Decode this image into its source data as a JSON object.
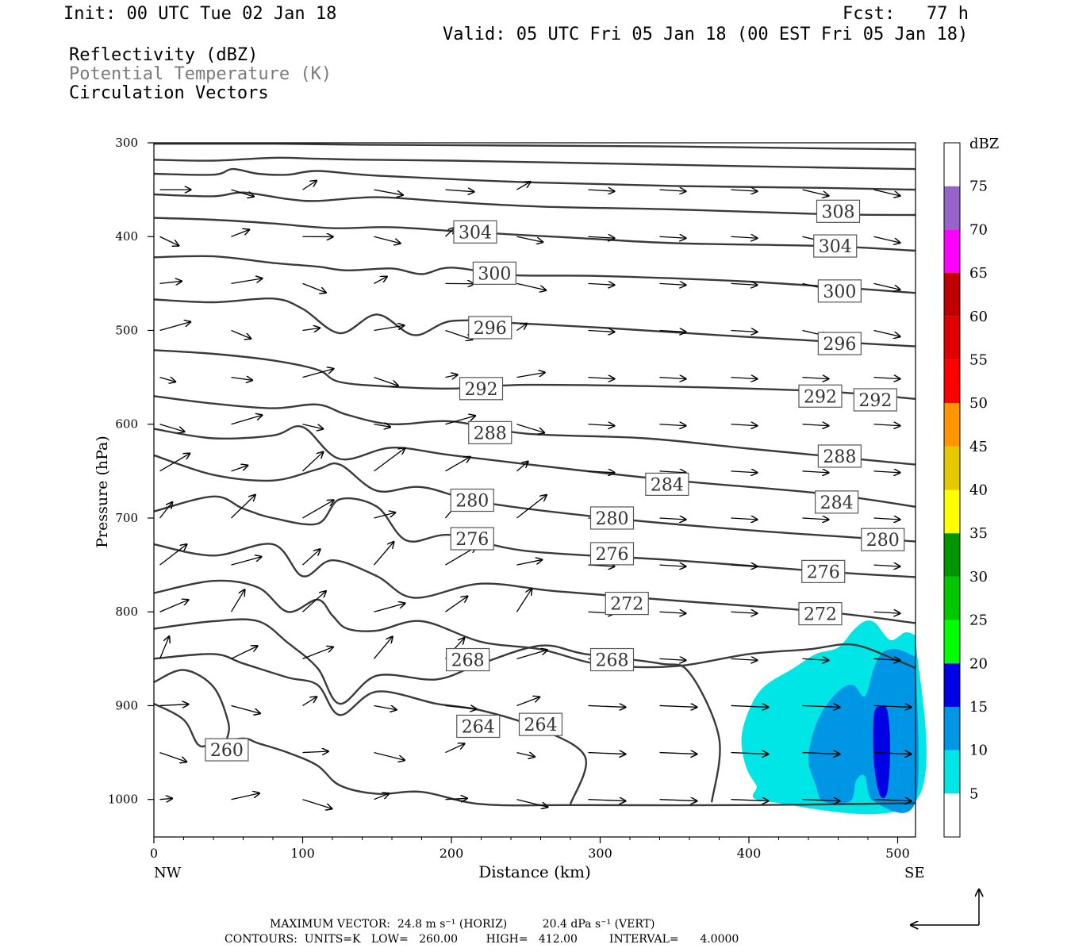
{
  "header": {
    "init": "Init: 00 UTC Tue 02 Jan 18",
    "fcst": "Fcst:   77 h",
    "valid": "Valid: 05 UTC Fri 05 Jan 18 (00 EST Fri 05 Jan 18)",
    "fields": [
      "Reflectivity (dBZ)",
      "Potential Temperature (K)",
      "Circulation Vectors"
    ]
  },
  "footer": {
    "max_vector": "MAXIMUM VECTOR:  24.8 m s⁻¹ (HORIZ)          20.4 dPa s⁻¹ (VERT)",
    "contours": "CONTOURS:  UNITS=K   LOW=   260.00        HIGH=   412.00         INTERVAL=      4.0000"
  },
  "colors": {
    "theta": "#3a3a3a",
    "fields_gray": "#7a7a7a",
    "cyan": "#00e6e6",
    "mid_blue": "#0096e6",
    "dark_blue": "#0000e6"
  },
  "chart_data": {
    "type": "cross-section",
    "xlabel": "Distance (km)",
    "ylabel": "Pressure (hPa)",
    "x_ticks": [
      0,
      100,
      200,
      300,
      400,
      500
    ],
    "y_ticks": [
      300,
      400,
      500,
      600,
      700,
      800,
      900,
      1000
    ],
    "xlim": [
      0,
      512
    ],
    "ylim": [
      300,
      1040
    ],
    "x_end_labels": {
      "left": "NW",
      "right": "SE"
    },
    "colorbar": {
      "unit": "dBZ",
      "levels": [
        5,
        10,
        15,
        20,
        25,
        30,
        35,
        40,
        45,
        50,
        55,
        60,
        65,
        70,
        75
      ],
      "colors": [
        "#ffffff",
        "#00e6e6",
        "#0096e6",
        "#0000e6",
        "#00ff00",
        "#00c800",
        "#009600",
        "#ffff00",
        "#e6c800",
        "#ff9600",
        "#ff0000",
        "#e10000",
        "#c00000",
        "#ff00ff",
        "#9664c8",
        "#ffffff"
      ]
    },
    "theta_labels": [
      {
        "text": "308",
        "x": 460,
        "p": 373
      },
      {
        "text": "304",
        "x": 216,
        "p": 395
      },
      {
        "text": "304",
        "x": 458,
        "p": 410
      },
      {
        "text": "300",
        "x": 229,
        "p": 439
      },
      {
        "text": "300",
        "x": 461,
        "p": 458
      },
      {
        "text": "296",
        "x": 226,
        "p": 497
      },
      {
        "text": "296",
        "x": 461,
        "p": 514
      },
      {
        "text": "292",
        "x": 220,
        "p": 562
      },
      {
        "text": "292",
        "x": 448,
        "p": 570
      },
      {
        "text": "292",
        "x": 485,
        "p": 574
      },
      {
        "text": "288",
        "x": 226,
        "p": 609
      },
      {
        "text": "288",
        "x": 461,
        "p": 634
      },
      {
        "text": "284",
        "x": 345,
        "p": 664
      },
      {
        "text": "284",
        "x": 459,
        "p": 683
      },
      {
        "text": "280",
        "x": 214,
        "p": 681
      },
      {
        "text": "280",
        "x": 308,
        "p": 700
      },
      {
        "text": "280",
        "x": 490,
        "p": 723
      },
      {
        "text": "276",
        "x": 214,
        "p": 722
      },
      {
        "text": "276",
        "x": 308,
        "p": 738
      },
      {
        "text": "276",
        "x": 450,
        "p": 757
      },
      {
        "text": "272",
        "x": 318,
        "p": 791
      },
      {
        "text": "272",
        "x": 448,
        "p": 802
      },
      {
        "text": "268",
        "x": 211,
        "p": 851
      },
      {
        "text": "268",
        "x": 308,
        "p": 851
      },
      {
        "text": "264",
        "x": 218,
        "p": 922
      },
      {
        "text": "264",
        "x": 260,
        "p": 920
      },
      {
        "text": "260",
        "x": 49,
        "p": 947
      }
    ],
    "theta_contours": [
      [
        [
          0,
          301
        ],
        [
          80,
          301
        ],
        [
          140,
          302
        ],
        [
          250,
          303
        ],
        [
          350,
          304
        ],
        [
          450,
          306
        ],
        [
          512,
          307
        ]
      ],
      [
        [
          0,
          318
        ],
        [
          40,
          319
        ],
        [
          80,
          316
        ],
        [
          110,
          317
        ],
        [
          140,
          318
        ],
        [
          200,
          319
        ],
        [
          300,
          322
        ],
        [
          400,
          325
        ],
        [
          512,
          328
        ]
      ],
      [
        [
          0,
          333
        ],
        [
          40,
          334
        ],
        [
          53,
          328
        ],
        [
          70,
          333
        ],
        [
          90,
          334
        ],
        [
          110,
          330
        ],
        [
          150,
          335
        ],
        [
          250,
          342
        ],
        [
          350,
          346
        ],
        [
          450,
          348
        ],
        [
          512,
          350
        ]
      ],
      [
        [
          0,
          355
        ],
        [
          40,
          357
        ],
        [
          60,
          353
        ],
        [
          90,
          360
        ],
        [
          110,
          362
        ],
        [
          150,
          358
        ],
        [
          200,
          363
        ],
        [
          260,
          368
        ],
        [
          350,
          371
        ],
        [
          450,
          376
        ],
        [
          512,
          377
        ]
      ],
      [
        [
          0,
          380
        ],
        [
          40,
          382
        ],
        [
          80,
          386
        ],
        [
          120,
          391
        ],
        [
          160,
          390
        ],
        [
          210,
          395
        ],
        [
          280,
          401
        ],
        [
          350,
          407
        ],
        [
          450,
          410
        ],
        [
          512,
          415
        ]
      ],
      [
        [
          0,
          422
        ],
        [
          40,
          421
        ],
        [
          80,
          428
        ],
        [
          110,
          432
        ],
        [
          130,
          436
        ],
        [
          160,
          434
        ],
        [
          180,
          440
        ],
        [
          200,
          433
        ],
        [
          240,
          441
        ],
        [
          300,
          442
        ],
        [
          400,
          448
        ],
        [
          512,
          460
        ]
      ],
      [
        [
          0,
          467
        ],
        [
          40,
          470
        ],
        [
          80,
          466
        ],
        [
          100,
          477
        ],
        [
          125,
          503
        ],
        [
          150,
          483
        ],
        [
          175,
          505
        ],
        [
          200,
          490
        ],
        [
          240,
          492
        ],
        [
          300,
          497
        ],
        [
          400,
          507
        ],
        [
          512,
          517
        ]
      ],
      [
        [
          0,
          521
        ],
        [
          40,
          525
        ],
        [
          80,
          532
        ],
        [
          110,
          542
        ],
        [
          125,
          555
        ],
        [
          160,
          560
        ],
        [
          200,
          562
        ],
        [
          250,
          558
        ],
        [
          350,
          560
        ],
        [
          450,
          565
        ],
        [
          512,
          573
        ]
      ],
      [
        [
          0,
          570
        ],
        [
          40,
          578
        ],
        [
          80,
          583
        ],
        [
          110,
          579
        ],
        [
          130,
          590
        ],
        [
          160,
          600
        ],
        [
          200,
          597
        ],
        [
          250,
          610
        ],
        [
          330,
          615
        ],
        [
          400,
          626
        ],
        [
          512,
          643
        ]
      ],
      [
        [
          0,
          605
        ],
        [
          40,
          615
        ],
        [
          80,
          612
        ],
        [
          100,
          603
        ],
        [
          125,
          637
        ],
        [
          160,
          625
        ],
        [
          200,
          633
        ],
        [
          280,
          648
        ],
        [
          350,
          660
        ],
        [
          450,
          674
        ],
        [
          512,
          688
        ]
      ],
      [
        [
          0,
          633
        ],
        [
          40,
          654
        ],
        [
          80,
          660
        ],
        [
          110,
          648
        ],
        [
          125,
          643
        ],
        [
          150,
          671
        ],
        [
          180,
          667
        ],
        [
          220,
          683
        ],
        [
          300,
          699
        ],
        [
          400,
          713
        ],
        [
          512,
          725
        ]
      ],
      [
        [
          0,
          693
        ],
        [
          40,
          677
        ],
        [
          60,
          690
        ],
        [
          80,
          700
        ],
        [
          110,
          706
        ],
        [
          125,
          680
        ],
        [
          150,
          688
        ],
        [
          170,
          724
        ],
        [
          200,
          718
        ],
        [
          250,
          735
        ],
        [
          350,
          745
        ],
        [
          450,
          757
        ],
        [
          512,
          763
        ]
      ],
      [
        [
          0,
          728
        ],
        [
          40,
          740
        ],
        [
          80,
          728
        ],
        [
          100,
          762
        ],
        [
          120,
          745
        ],
        [
          150,
          762
        ],
        [
          175,
          785
        ],
        [
          220,
          770
        ],
        [
          270,
          778
        ],
        [
          350,
          788
        ],
        [
          450,
          800
        ],
        [
          512,
          812
        ]
      ],
      [
        [
          0,
          780
        ],
        [
          40,
          767
        ],
        [
          70,
          774
        ],
        [
          90,
          800
        ],
        [
          110,
          787
        ],
        [
          120,
          804
        ],
        [
          130,
          818
        ],
        [
          150,
          820
        ],
        [
          180,
          810
        ],
        [
          220,
          832
        ],
        [
          260,
          840
        ],
        [
          300,
          856
        ],
        [
          350,
          858
        ],
        [
          400,
          845
        ],
        [
          440,
          840
        ],
        [
          470,
          835
        ],
        [
          500,
          852
        ],
        [
          512,
          860
        ]
      ],
      [
        [
          0,
          818
        ],
        [
          40,
          810
        ],
        [
          70,
          810
        ],
        [
          90,
          833
        ],
        [
          110,
          860
        ],
        [
          125,
          898
        ],
        [
          150,
          868
        ],
        [
          190,
          872
        ],
        [
          220,
          855
        ],
        [
          260,
          836
        ],
        [
          290,
          845
        ],
        [
          340,
          855
        ],
        [
          360,
          865
        ],
        [
          380,
          935
        ],
        [
          375,
          1003
        ]
      ],
      [
        [
          0,
          850
        ],
        [
          40,
          845
        ],
        [
          60,
          855
        ],
        [
          90,
          870
        ],
        [
          110,
          878
        ],
        [
          125,
          910
        ],
        [
          150,
          885
        ],
        [
          190,
          898
        ],
        [
          220,
          905
        ],
        [
          260,
          925
        ],
        [
          290,
          955
        ],
        [
          280,
          1005
        ]
      ],
      [
        [
          0,
          875
        ],
        [
          20,
          862
        ],
        [
          40,
          880
        ],
        [
          50,
          918
        ],
        [
          49,
          936
        ]
      ],
      [
        [
          0,
          898
        ],
        [
          20,
          915
        ],
        [
          30,
          942
        ],
        [
          40,
          940
        ],
        [
          60,
          935
        ],
        [
          70,
          940
        ],
        [
          90,
          950
        ],
        [
          110,
          964
        ],
        [
          125,
          985
        ],
        [
          150,
          994
        ],
        [
          180,
          992
        ],
        [
          220,
          1005
        ],
        [
          280,
          1006
        ],
        [
          400,
          1006
        ],
        [
          512,
          1004
        ]
      ]
    ]
  }
}
